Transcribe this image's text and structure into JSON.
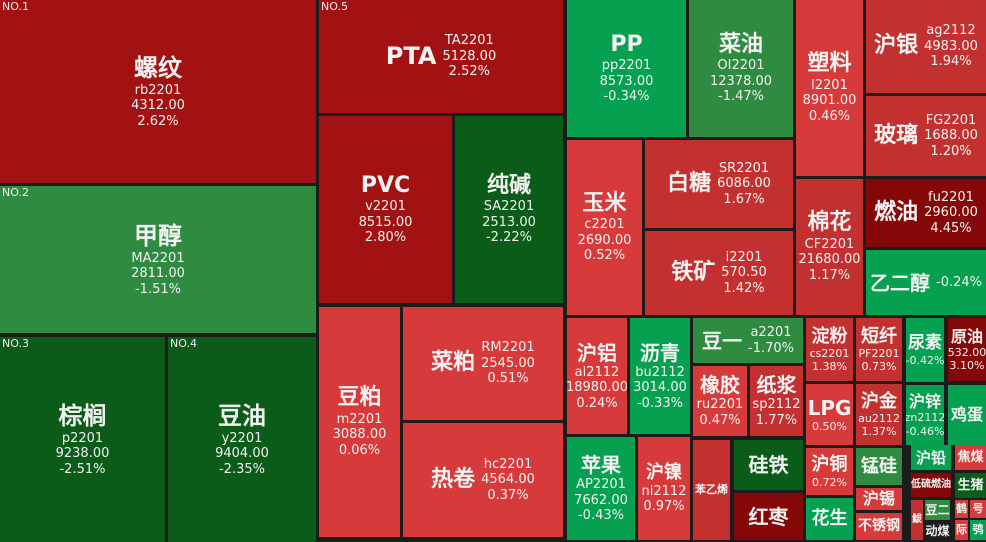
{
  "colors": {
    "strong_red": "#a31212",
    "red": "#d63a3a",
    "mid_red": "#c23030",
    "dark_red": "#840808",
    "green": "#05a050",
    "mid_green": "#2e8b40",
    "dark_green": "#0a5c18",
    "background": "#1c1c1c"
  },
  "cells": [
    {
      "rank": "NO.1",
      "name": "螺纹",
      "code": "rb2201",
      "price": "4312.00",
      "change": "2.62%",
      "color": "strong_red"
    },
    {
      "rank": "NO.2",
      "name": "甲醇",
      "code": "MA2201",
      "price": "2811.00",
      "change": "-1.51%",
      "color": "mid_green"
    },
    {
      "rank": "NO.3",
      "name": "棕榈",
      "code": "p2201",
      "price": "9238.00",
      "change": "-2.51%",
      "color": "dark_green"
    },
    {
      "rank": "NO.4",
      "name": "豆油",
      "code": "y2201",
      "price": "9404.00",
      "change": "-2.35%",
      "color": "dark_green"
    },
    {
      "rank": "NO.5",
      "name": "PTA",
      "code": "TA2201",
      "price": "5128.00",
      "change": "2.52%",
      "color": "strong_red"
    },
    {
      "name": "PVC",
      "code": "v2201",
      "price": "8515.00",
      "change": "2.80%",
      "color": "strong_red"
    },
    {
      "name": "纯碱",
      "code": "SA2201",
      "price": "2513.00",
      "change": "-2.22%",
      "color": "dark_green"
    },
    {
      "name": "豆粕",
      "code": "m2201",
      "price": "3088.00",
      "change": "0.06%",
      "color": "red"
    },
    {
      "name": "菜粕",
      "code": "RM2201",
      "price": "2545.00",
      "change": "0.51%",
      "color": "red"
    },
    {
      "name": "热卷",
      "code": "hc2201",
      "price": "4564.00",
      "change": "0.37%",
      "color": "red"
    },
    {
      "name": "PP",
      "code": "pp2201",
      "price": "8573.00",
      "change": "-0.34%",
      "color": "green"
    },
    {
      "name": "菜油",
      "code": "OI2201",
      "price": "12378.00",
      "change": "-1.47%",
      "color": "mid_green"
    },
    {
      "name": "塑料",
      "code": "l2201",
      "price": "8901.00",
      "change": "0.46%",
      "color": "red"
    },
    {
      "name": "沪银",
      "code": "ag2112",
      "price": "4983.00",
      "change": "1.94%",
      "color": "mid_red"
    },
    {
      "name": "玻璃",
      "code": "FG2201",
      "price": "1688.00",
      "change": "1.20%",
      "color": "mid_red"
    },
    {
      "name": "玉米",
      "code": "c2201",
      "price": "2690.00",
      "change": "0.52%",
      "color": "red"
    },
    {
      "name": "白糖",
      "code": "SR2201",
      "price": "6086.00",
      "change": "1.67%",
      "color": "mid_red"
    },
    {
      "name": "铁矿",
      "code": "i2201",
      "price": "570.50",
      "change": "1.42%",
      "color": "mid_red"
    },
    {
      "name": "棉花",
      "code": "CF2201",
      "price": "21680.00",
      "change": "1.17%",
      "color": "mid_red"
    },
    {
      "name": "燃油",
      "code": "fu2201",
      "price": "2960.00",
      "change": "4.45%",
      "color": "dark_red"
    },
    {
      "name": "乙二醇",
      "change": "-0.24%",
      "color": "green"
    },
    {
      "name": "沪铝",
      "code": "al2112",
      "price": "18980.00",
      "change": "0.24%",
      "color": "red"
    },
    {
      "name": "沥青",
      "code": "bu2112",
      "price": "3014.00",
      "change": "-0.33%",
      "color": "green"
    },
    {
      "name": "豆一",
      "code": "a2201",
      "change": "-1.70%",
      "color": "mid_green"
    },
    {
      "name": "橡胶",
      "code": "ru2201",
      "change": "0.47%",
      "color": "red"
    },
    {
      "name": "纸浆",
      "code": "sp2112",
      "change": "1.77%",
      "color": "mid_red"
    },
    {
      "name": "淀粉",
      "code": "cs2201",
      "change": "1.38%",
      "color": "mid_red"
    },
    {
      "name": "短纤",
      "code": "PF2201",
      "change": "0.73%",
      "color": "mid_red"
    },
    {
      "name": "尿素",
      "change": "-0.42%",
      "color": "green"
    },
    {
      "name": "原油",
      "price": "532.00",
      "change": "3.10%",
      "color": "dark_red"
    },
    {
      "name": "LPG",
      "change": "0.50%",
      "color": "red"
    },
    {
      "name": "沪金",
      "code": "au2112",
      "change": "1.37%",
      "color": "mid_red"
    },
    {
      "name": "沪锌",
      "code": "zn2112",
      "change": "-0.46%",
      "color": "green"
    },
    {
      "name": "鸡蛋",
      "color": "green"
    },
    {
      "name": "苹果",
      "code": "AP2201",
      "price": "7662.00",
      "change": "-0.43%",
      "color": "green"
    },
    {
      "name": "沪镍",
      "code": "ni2112",
      "change": "0.97%",
      "color": "red"
    },
    {
      "name": "苯乙烯",
      "color": "mid_red"
    },
    {
      "name": "硅铁",
      "color": "dark_green"
    },
    {
      "name": "红枣",
      "color": "dark_red"
    },
    {
      "name": "沪铜",
      "change": "0.72%",
      "color": "red"
    },
    {
      "name": "花生",
      "color": "green"
    },
    {
      "name": "锰硅",
      "color": "mid_green"
    },
    {
      "name": "沪锡",
      "color": "red"
    },
    {
      "name": "不锈钢",
      "color": "red"
    },
    {
      "name": "沪铅",
      "color": "green"
    },
    {
      "name": "焦煤",
      "color": "red"
    },
    {
      "name": "低硫燃油",
      "color": "dark_red"
    },
    {
      "name": "生猪",
      "color": "dark_green"
    },
    {
      "name": "鮁",
      "color": "mid_red"
    },
    {
      "name": "豆二",
      "color": "mid_green"
    },
    {
      "name": "动煤",
      "color": "background"
    },
    {
      "name": "鹤",
      "color": "red"
    },
    {
      "name": "号",
      "color": "red"
    },
    {
      "name": "际",
      "color": "red"
    },
    {
      "name": "鸮",
      "color": "green"
    }
  ]
}
